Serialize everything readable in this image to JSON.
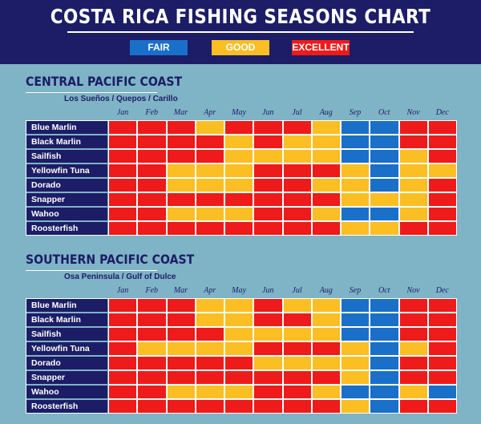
{
  "title": "COSTA RICA FISHING SEASONS CHART",
  "legend": [
    {
      "label": "FAIR",
      "color": "#1a6fc9"
    },
    {
      "label": "GOOD",
      "color": "#fbbf24"
    },
    {
      "label": "EXCELLENT",
      "color": "#ef1a1a"
    }
  ],
  "colors": {
    "F": "#1a6fc9",
    "G": "#fbbf24",
    "E": "#ef1a1a"
  },
  "chart_data": [
    {
      "type": "heatmap",
      "title": "CENTRAL PACIFIC COAST",
      "subtitle": "Los Sueños / Quepos / Carillo",
      "months": [
        "Jan",
        "Feb",
        "Mar",
        "Apr",
        "May",
        "Jun",
        "Jul",
        "Aug",
        "Sep",
        "Oct",
        "Nov",
        "Dec"
      ],
      "legend_scale": {
        "F": "FAIR",
        "G": "GOOD",
        "E": "EXCELLENT"
      },
      "rows": [
        {
          "species": "Blue Marlin",
          "ratings": [
            "E",
            "E",
            "E",
            "G",
            "E",
            "E",
            "E",
            "G",
            "F",
            "F",
            "E",
            "E"
          ]
        },
        {
          "species": "Black Marlin",
          "ratings": [
            "E",
            "E",
            "E",
            "E",
            "G",
            "E",
            "G",
            "G",
            "F",
            "F",
            "E",
            "E"
          ]
        },
        {
          "species": "Sailfish",
          "ratings": [
            "E",
            "E",
            "E",
            "E",
            "G",
            "G",
            "G",
            "G",
            "F",
            "F",
            "G",
            "E"
          ]
        },
        {
          "species": "Yellowfin Tuna",
          "ratings": [
            "E",
            "E",
            "G",
            "G",
            "G",
            "E",
            "E",
            "E",
            "G",
            "F",
            "G",
            "G"
          ]
        },
        {
          "species": "Dorado",
          "ratings": [
            "E",
            "E",
            "G",
            "G",
            "G",
            "E",
            "E",
            "G",
            "G",
            "F",
            "G",
            "E"
          ]
        },
        {
          "species": "Snapper",
          "ratings": [
            "E",
            "E",
            "E",
            "E",
            "E",
            "E",
            "E",
            "E",
            "G",
            "G",
            "G",
            "E"
          ]
        },
        {
          "species": "Wahoo",
          "ratings": [
            "E",
            "E",
            "G",
            "G",
            "G",
            "E",
            "E",
            "G",
            "F",
            "F",
            "G",
            "E"
          ]
        },
        {
          "species": "Roosterfish",
          "ratings": [
            "E",
            "E",
            "E",
            "E",
            "E",
            "E",
            "E",
            "E",
            "G",
            "G",
            "E",
            "E"
          ]
        }
      ]
    },
    {
      "type": "heatmap",
      "title": "SOUTHERN PACIFIC COAST",
      "subtitle": "Osa Peninsula / Gulf of Dulce",
      "months": [
        "Jan",
        "Feb",
        "Mar",
        "Apr",
        "May",
        "Jun",
        "Jul",
        "Aug",
        "Sep",
        "Oct",
        "Nov",
        "Dec"
      ],
      "legend_scale": {
        "F": "FAIR",
        "G": "GOOD",
        "E": "EXCELLENT"
      },
      "rows": [
        {
          "species": "Blue Marlin",
          "ratings": [
            "E",
            "E",
            "E",
            "G",
            "G",
            "E",
            "G",
            "G",
            "F",
            "F",
            "E",
            "E"
          ]
        },
        {
          "species": "Black Marlin",
          "ratings": [
            "E",
            "E",
            "E",
            "G",
            "G",
            "E",
            "E",
            "G",
            "F",
            "F",
            "E",
            "E"
          ]
        },
        {
          "species": "Sailfish",
          "ratings": [
            "E",
            "E",
            "E",
            "E",
            "G",
            "G",
            "G",
            "G",
            "F",
            "F",
            "E",
            "E"
          ]
        },
        {
          "species": "Yellowfin Tuna",
          "ratings": [
            "E",
            "G",
            "G",
            "G",
            "G",
            "E",
            "E",
            "E",
            "G",
            "F",
            "G",
            "E"
          ]
        },
        {
          "species": "Dorado",
          "ratings": [
            "E",
            "E",
            "E",
            "E",
            "E",
            "G",
            "G",
            "G",
            "G",
            "F",
            "E",
            "E"
          ]
        },
        {
          "species": "Snapper",
          "ratings": [
            "E",
            "E",
            "E",
            "E",
            "E",
            "E",
            "E",
            "E",
            "G",
            "F",
            "E",
            "E"
          ]
        },
        {
          "species": "Wahoo",
          "ratings": [
            "E",
            "E",
            "G",
            "G",
            "G",
            "E",
            "E",
            "G",
            "F",
            "F",
            "G",
            "F"
          ]
        },
        {
          "species": "Roosterfish",
          "ratings": [
            "E",
            "E",
            "E",
            "E",
            "E",
            "E",
            "E",
            "E",
            "G",
            "F",
            "E",
            "E"
          ]
        }
      ]
    }
  ]
}
